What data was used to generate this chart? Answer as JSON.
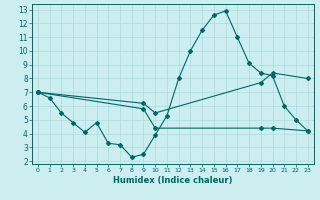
{
  "xlabel": "Humidex (Indice chaleur)",
  "bg_color": "#cceef0",
  "line_color": "#006666",
  "grid_color": "#aadddd",
  "xlim": [
    -0.5,
    23.5
  ],
  "ylim": [
    1.8,
    13.4
  ],
  "xticks": [
    0,
    1,
    2,
    3,
    4,
    5,
    6,
    7,
    8,
    9,
    10,
    11,
    12,
    13,
    14,
    15,
    16,
    17,
    18,
    19,
    20,
    21,
    22,
    23
  ],
  "yticks": [
    2,
    3,
    4,
    5,
    6,
    7,
    8,
    9,
    10,
    11,
    12,
    13
  ],
  "line1_x": [
    0,
    1,
    2,
    3,
    4,
    5,
    6,
    7,
    8,
    9,
    10,
    11,
    12,
    13,
    14,
    15,
    16,
    17,
    18,
    19,
    20,
    21,
    22,
    23
  ],
  "line1_y": [
    7.0,
    6.6,
    5.5,
    4.8,
    4.1,
    4.8,
    3.3,
    3.2,
    2.3,
    2.5,
    3.9,
    5.3,
    8.0,
    10.0,
    11.5,
    12.6,
    12.9,
    11.0,
    9.1,
    8.4,
    8.2,
    6.0,
    5.0,
    4.2
  ],
  "line2_x": [
    0,
    9,
    10,
    19,
    20,
    23
  ],
  "line2_y": [
    7.0,
    5.8,
    4.4,
    4.4,
    4.4,
    4.2
  ],
  "line3_x": [
    0,
    9,
    10,
    19,
    20,
    23
  ],
  "line3_y": [
    7.0,
    6.2,
    5.5,
    7.7,
    8.4,
    8.0
  ],
  "xlabel_fontsize": 6.0,
  "tick_fontsize_x": 4.5,
  "tick_fontsize_y": 5.5
}
